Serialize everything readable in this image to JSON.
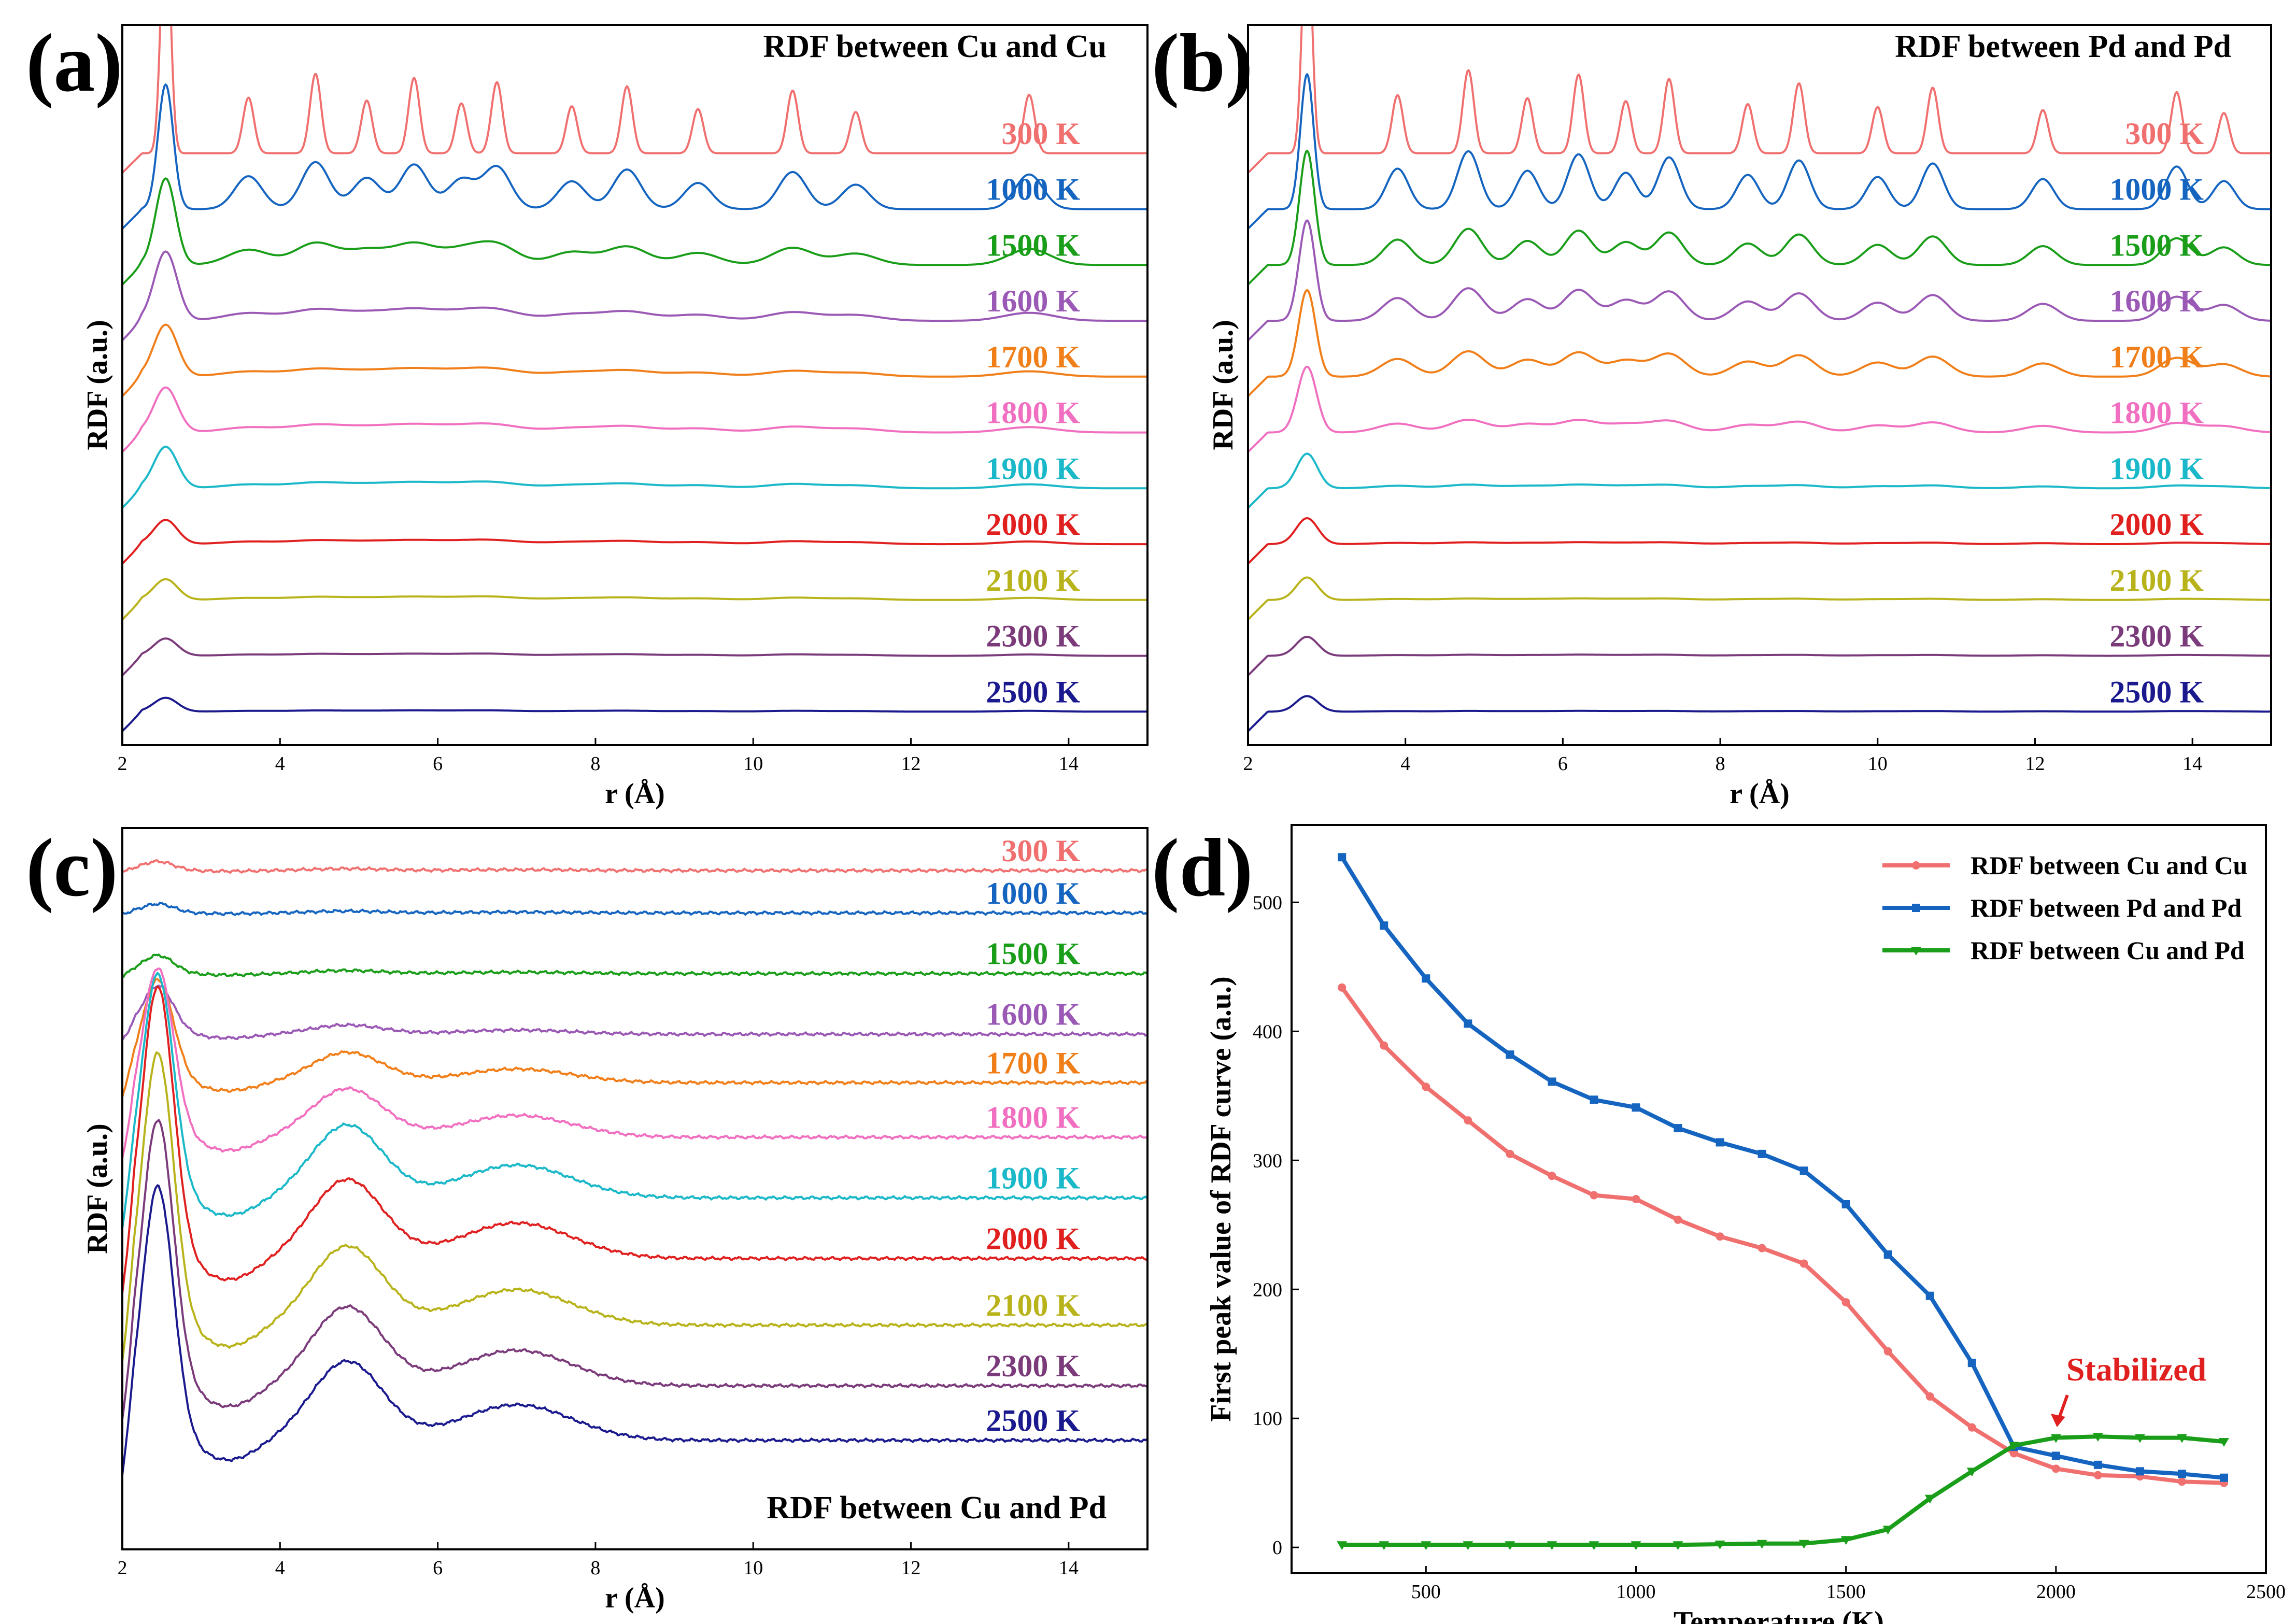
{
  "chart_data": [
    {
      "panel": "(a)",
      "type": "line",
      "title": "RDF between Cu and Cu",
      "title_position": "top-right",
      "xlabel": "r (Å)",
      "ylabel": "RDF (a.u.)",
      "xlim": [
        2,
        15
      ],
      "xticks": [
        2,
        4,
        6,
        8,
        10,
        12,
        14
      ],
      "xtick_labels": [
        "2",
        "4",
        "6",
        "8",
        "10",
        "12",
        "14"
      ],
      "peak_positions": [
        2.55,
        3.6,
        4.45,
        5.1,
        5.7,
        6.3,
        6.75,
        7.7,
        8.4,
        9.3,
        10.5,
        11.3,
        13.5
      ],
      "series": [
        {
          "name": "300 K",
          "label": "300 K",
          "color": "#f07070",
          "baseline": 10,
          "sharpness": 1.0,
          "first_peak": 7.2,
          "later_peak": 2.2
        },
        {
          "name": "1000 K",
          "label": "1000 K",
          "color": "#1565c0",
          "baseline": 9,
          "sharpness": 0.7,
          "first_peak": 3.6,
          "later_peak": 1.3
        },
        {
          "name": "1500 K",
          "label": "1500 K",
          "color": "#1a9e1a",
          "baseline": 8,
          "sharpness": 0.45,
          "first_peak": 2.5,
          "later_peak": 0.6
        },
        {
          "name": "1600 K",
          "label": "1600 K",
          "color": "#9b59b6",
          "baseline": 7,
          "sharpness": 0.3,
          "first_peak": 2.0,
          "later_peak": 0.3
        },
        {
          "name": "1700 K",
          "label": "1700 K",
          "color": "#f07f1a",
          "baseline": 6,
          "sharpness": 0.25,
          "first_peak": 1.5,
          "later_peak": 0.2
        },
        {
          "name": "1800 K",
          "label": "1800 K",
          "color": "#f06fc0",
          "baseline": 5,
          "sharpness": 0.25,
          "first_peak": 1.3,
          "later_peak": 0.2
        },
        {
          "name": "1900 K",
          "label": "1900 K",
          "color": "#1ab8c8",
          "baseline": 4,
          "sharpness": 0.25,
          "first_peak": 1.2,
          "later_peak": 0.15
        },
        {
          "name": "2000 K",
          "label": "2000 K",
          "color": "#e01f1f",
          "baseline": 3,
          "sharpness": 0.25,
          "first_peak": 0.7,
          "later_peak": 0.1
        },
        {
          "name": "2100 K",
          "label": "2100 K",
          "color": "#b8b31a",
          "baseline": 2,
          "sharpness": 0.25,
          "first_peak": 0.6,
          "later_peak": 0.08
        },
        {
          "name": "2300 K",
          "label": "2300 K",
          "color": "#7b3b7b",
          "baseline": 1,
          "sharpness": 0.25,
          "first_peak": 0.5,
          "later_peak": 0.05
        },
        {
          "name": "2500 K",
          "label": "2500 K",
          "color": "#1a1a8e",
          "baseline": 0,
          "sharpness": 0.25,
          "first_peak": 0.4,
          "later_peak": 0.03
        }
      ]
    },
    {
      "panel": "(b)",
      "type": "line",
      "title": "RDF between Pd and Pd",
      "title_position": "top-right",
      "xlabel": "r (Å)",
      "ylabel": "RDF (a.u.)",
      "xlim": [
        2,
        15
      ],
      "xticks": [
        2,
        4,
        6,
        8,
        10,
        12,
        14
      ],
      "xtick_labels": [
        "2",
        "4",
        "6",
        "8",
        "10",
        "12",
        "14"
      ],
      "peak_positions": [
        2.75,
        3.9,
        4.8,
        5.55,
        6.2,
        6.8,
        7.35,
        8.35,
        9.0,
        10.0,
        10.7,
        12.1,
        13.8,
        14.4
      ],
      "series": [
        {
          "name": "300 K",
          "label": "300 K",
          "color": "#f07070",
          "baseline": 10,
          "sharpness": 1.0,
          "first_peak": 7.0,
          "later_peak": 2.3
        },
        {
          "name": "1000 K",
          "label": "1000 K",
          "color": "#1565c0",
          "baseline": 9,
          "sharpness": 0.8,
          "first_peak": 3.9,
          "later_peak": 1.6
        },
        {
          "name": "1500 K",
          "label": "1500 K",
          "color": "#1a9e1a",
          "baseline": 8,
          "sharpness": 0.7,
          "first_peak": 3.3,
          "later_peak": 1.0
        },
        {
          "name": "1600 K",
          "label": "1600 K",
          "color": "#9b59b6",
          "baseline": 7,
          "sharpness": 0.65,
          "first_peak": 2.9,
          "later_peak": 0.9
        },
        {
          "name": "1700 K",
          "label": "1700 K",
          "color": "#f07f1a",
          "baseline": 6,
          "sharpness": 0.6,
          "first_peak": 2.5,
          "later_peak": 0.7
        },
        {
          "name": "1800 K",
          "label": "1800 K",
          "color": "#f06fc0",
          "baseline": 5,
          "sharpness": 0.5,
          "first_peak": 1.9,
          "later_peak": 0.35
        },
        {
          "name": "1900 K",
          "label": "1900 K",
          "color": "#1ab8c8",
          "baseline": 4,
          "sharpness": 0.4,
          "first_peak": 1.0,
          "later_peak": 0.1
        },
        {
          "name": "2000 K",
          "label": "2000 K",
          "color": "#e01f1f",
          "baseline": 3,
          "sharpness": 0.35,
          "first_peak": 0.75,
          "later_peak": 0.05
        },
        {
          "name": "2100 K",
          "label": "2100 K",
          "color": "#b8b31a",
          "baseline": 2,
          "sharpness": 0.35,
          "first_peak": 0.65,
          "later_peak": 0.04
        },
        {
          "name": "2300 K",
          "label": "2300 K",
          "color": "#7b3b7b",
          "baseline": 1,
          "sharpness": 0.35,
          "first_peak": 0.55,
          "later_peak": 0.03
        },
        {
          "name": "2500 K",
          "label": "2500 K",
          "color": "#1a1a8e",
          "baseline": 0,
          "sharpness": 0.35,
          "first_peak": 0.45,
          "later_peak": 0.02
        }
      ]
    },
    {
      "panel": "(c)",
      "type": "line",
      "title": "RDF between Cu and Pd",
      "title_position": "bottom-right",
      "xlabel": "r (Å)",
      "ylabel": "RDF (a.u.)",
      "xlim": [
        2,
        15
      ],
      "xticks": [
        2,
        4,
        6,
        8,
        10,
        12,
        14
      ],
      "xtick_labels": [
        "2",
        "4",
        "6",
        "8",
        "10",
        "12",
        "14"
      ],
      "series": [
        {
          "name": "300 K",
          "label": "300 K",
          "color": "#f07070",
          "baseline": 10.6,
          "first_peak": 0.15,
          "second_peak": 0.03
        },
        {
          "name": "1000 K",
          "label": "1000 K",
          "color": "#1565c0",
          "baseline": 9.9,
          "first_peak": 0.15,
          "second_peak": 0.03
        },
        {
          "name": "1500 K",
          "label": "1500 K",
          "color": "#1a9e1a",
          "baseline": 8.9,
          "first_peak": 0.3,
          "second_peak": 0.05
        },
        {
          "name": "1600 K",
          "label": "1600 K",
          "color": "#9b59b6",
          "baseline": 7.9,
          "first_peak": 0.8,
          "second_peak": 0.15
        },
        {
          "name": "1700 K",
          "label": "1700 K",
          "color": "#f07f1a",
          "baseline": 7.1,
          "first_peak": 1.7,
          "second_peak": 0.5
        },
        {
          "name": "1800 K",
          "label": "1800 K",
          "color": "#f06fc0",
          "baseline": 6.2,
          "first_peak": 2.8,
          "second_peak": 0.8
        },
        {
          "name": "1900 K",
          "label": "1900 K",
          "color": "#1ab8c8",
          "baseline": 5.2,
          "first_peak": 3.7,
          "second_peak": 1.2
        },
        {
          "name": "2000 K",
          "label": "2000 K",
          "color": "#e01f1f",
          "baseline": 4.2,
          "first_peak": 4.5,
          "second_peak": 1.3
        },
        {
          "name": "2100 K",
          "label": "2100 K",
          "color": "#b8b31a",
          "baseline": 3.1,
          "first_peak": 4.5,
          "second_peak": 1.3
        },
        {
          "name": "2300 K",
          "label": "2300 K",
          "color": "#7b3b7b",
          "baseline": 2.1,
          "first_peak": 4.4,
          "second_peak": 1.3
        },
        {
          "name": "2500 K",
          "label": "2500 K",
          "color": "#1a1a8e",
          "baseline": 1.2,
          "first_peak": 4.2,
          "second_peak": 1.3
        }
      ]
    },
    {
      "panel": "(d)",
      "type": "line",
      "title": "",
      "xlabel": "Temperature (K)",
      "ylabel": "First peak value of RDF curve (a.u.)",
      "xlim": [
        180,
        2500
      ],
      "ylim": [
        -20,
        560
      ],
      "xticks": [
        500,
        1000,
        1500,
        2000,
        2500
      ],
      "xtick_labels": [
        "500",
        "1000",
        "1500",
        "2000",
        "2500"
      ],
      "yticks": [
        0,
        100,
        200,
        300,
        400,
        500
      ],
      "ytick_labels": [
        "0",
        "100",
        "200",
        "300",
        "400",
        "500"
      ],
      "x": [
        300,
        400,
        500,
        600,
        700,
        800,
        900,
        1000,
        1100,
        1200,
        1300,
        1400,
        1500,
        1600,
        1700,
        1800,
        1900,
        2000,
        2100,
        2200,
        2300,
        2400
      ],
      "series": [
        {
          "name": "RDF between Cu and Cu",
          "color": "#f07070",
          "marker": "circle",
          "values": [
            434,
            389,
            357,
            331,
            305,
            288,
            273,
            270,
            254,
            241,
            232,
            220,
            190,
            152,
            117,
            93,
            73,
            61,
            56,
            55,
            51,
            50
          ]
        },
        {
          "name": "RDF between Pd and Pd",
          "color": "#1565c0",
          "marker": "square",
          "values": [
            535,
            482,
            441,
            406,
            382,
            361,
            347,
            341,
            325,
            314,
            305,
            292,
            266,
            227,
            195,
            143,
            78,
            71,
            64,
            59,
            57,
            54
          ]
        },
        {
          "name": "RDF between Cu and Pd",
          "color": "#1a9e1a",
          "marker": "triangle-down",
          "values": [
            2,
            2,
            2,
            2,
            2,
            2,
            2,
            2,
            2,
            2.5,
            3,
            3,
            6,
            14,
            38,
            59,
            79,
            85,
            86,
            85,
            85,
            82
          ]
        }
      ],
      "legend_position": "top-right",
      "annotation": {
        "text": "Stabilized",
        "target_x": 2000,
        "target_y": 94,
        "color": "#e01f1f"
      }
    }
  ],
  "panel_labels": [
    "(a)",
    "(b)",
    "(c)",
    "(d)"
  ]
}
